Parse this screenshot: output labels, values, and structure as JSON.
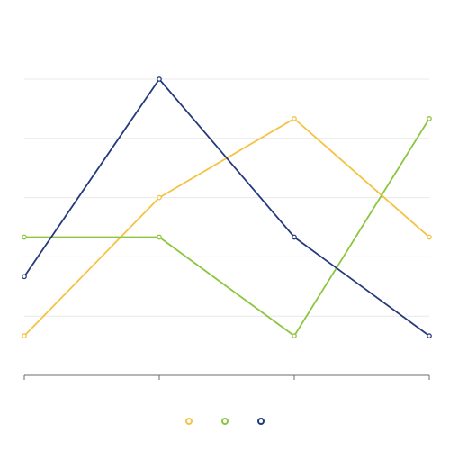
{
  "chart_data": {
    "type": "line",
    "title": "",
    "xlabel": "",
    "ylabel": "",
    "categories": [
      "",
      "",
      "",
      ""
    ],
    "ylim": [
      0,
      150
    ],
    "y_grid_step": 30,
    "grid": "horizontal",
    "legend_position": "bottom-center",
    "series": [
      {
        "color": "#f5c242",
        "values": [
          20,
          90,
          130,
          70
        ]
      },
      {
        "color": "#8cc63f",
        "values": [
          70,
          70,
          20,
          130
        ]
      },
      {
        "color": "#253a7c",
        "values": [
          50,
          150,
          70,
          20
        ]
      }
    ]
  }
}
